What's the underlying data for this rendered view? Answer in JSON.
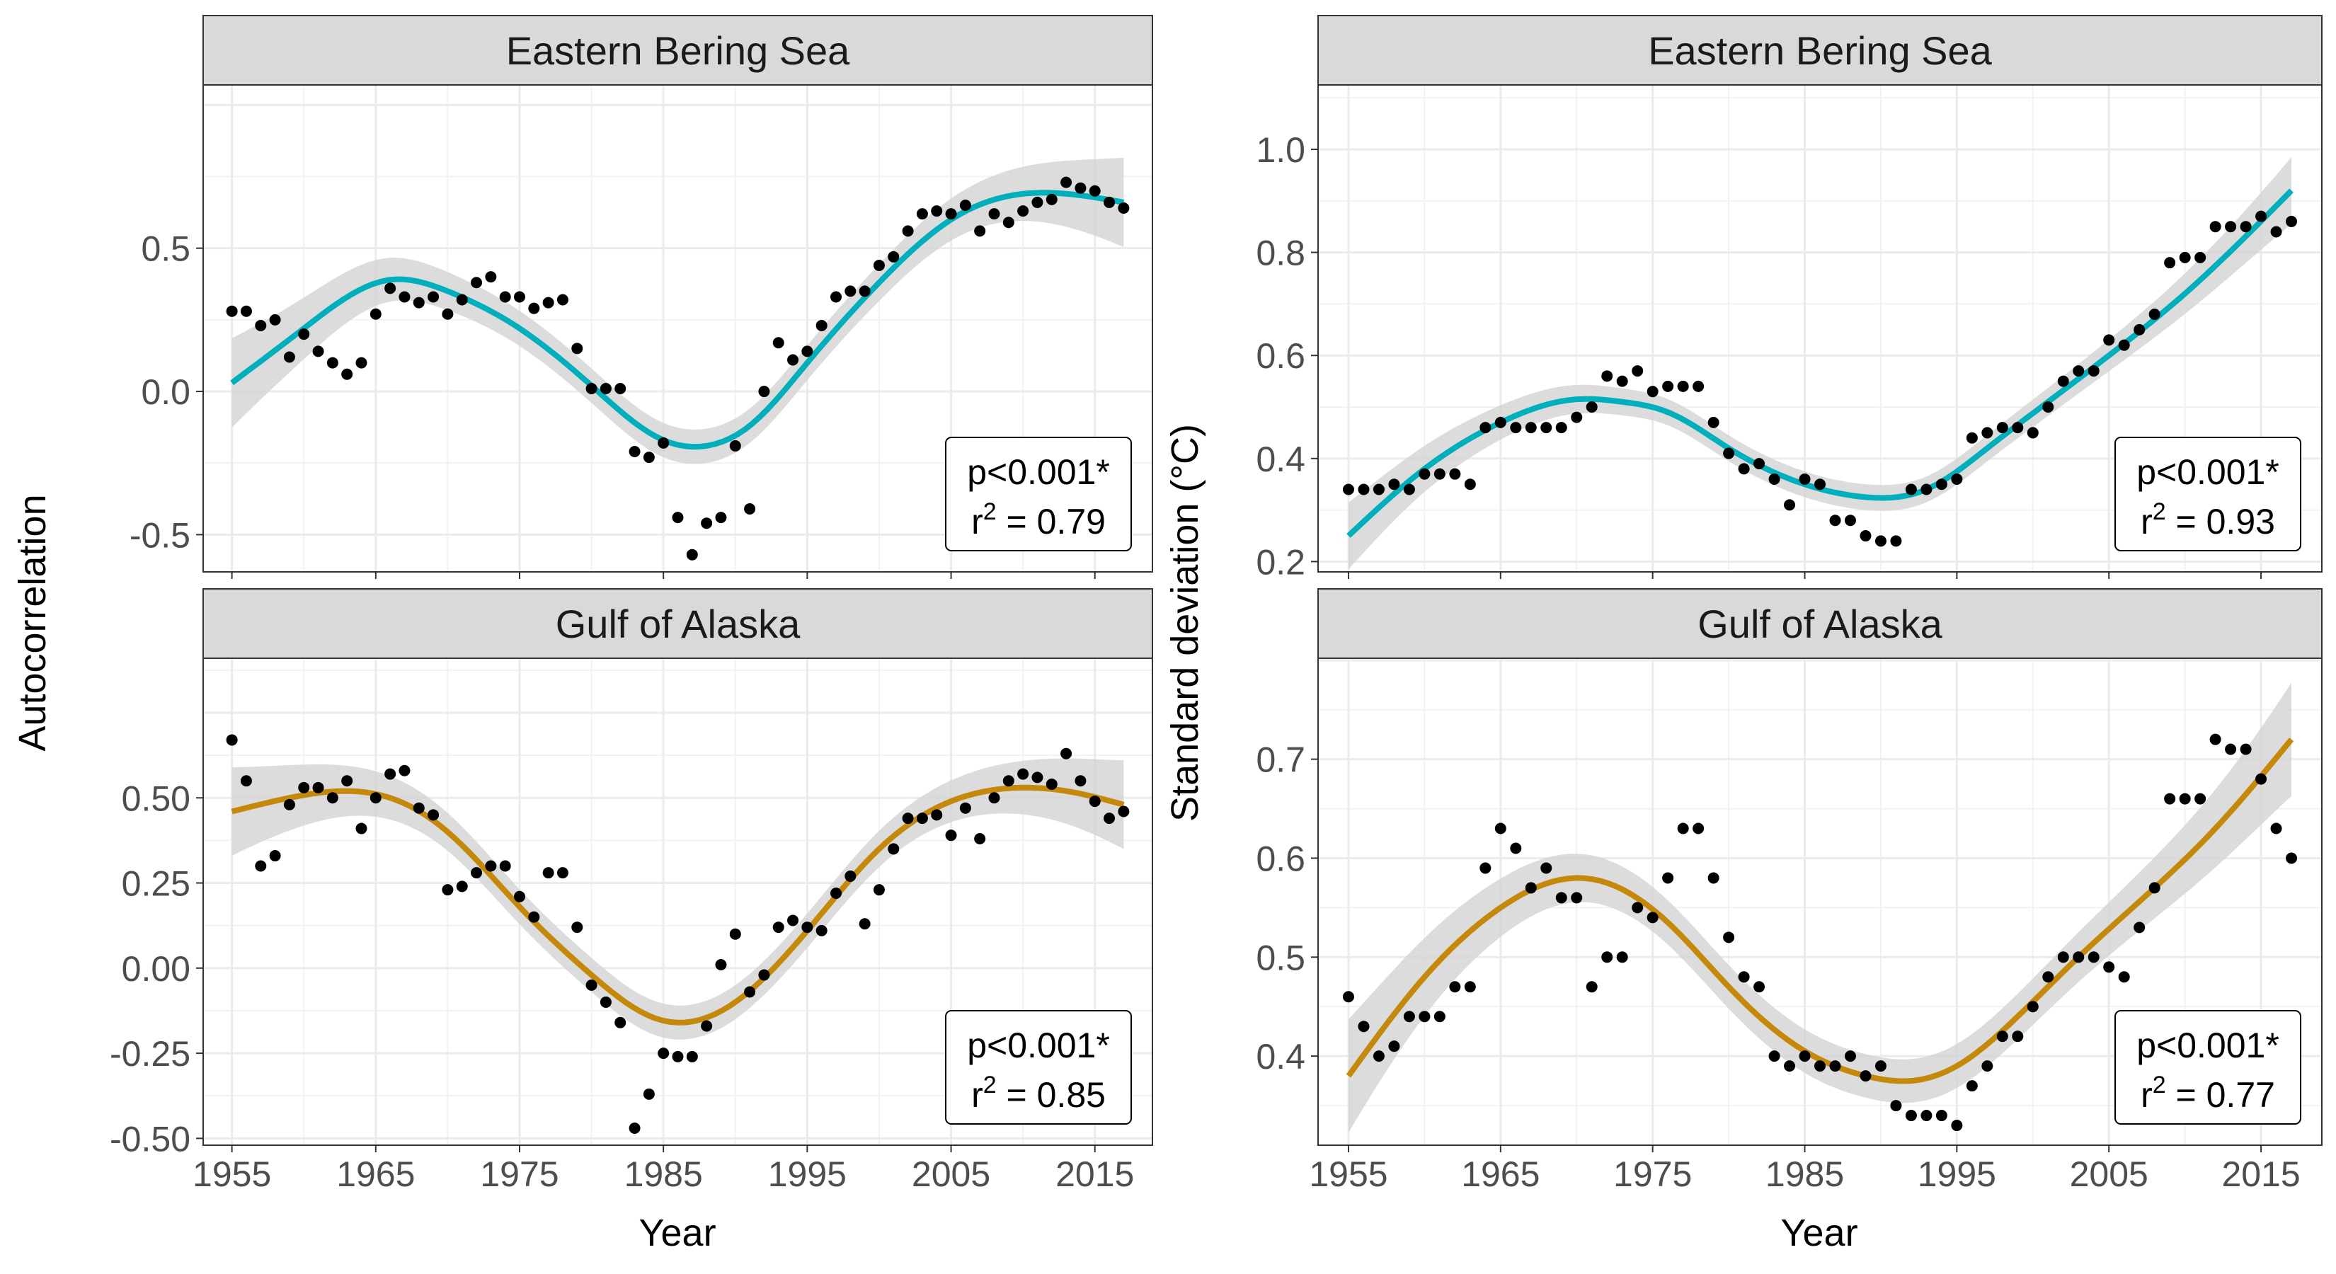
{
  "chart_data": [
    {
      "type": "scatter",
      "panel": "top-left",
      "strip_title": "Eastern Bering Sea",
      "xlabel": "Year",
      "ylabel": "Autocorrelation",
      "xlim": [
        1953,
        2019
      ],
      "ylim": [
        -0.63,
        1.07
      ],
      "x_ticks": [
        1955,
        1965,
        1975,
        1985,
        1995,
        2005,
        2015
      ],
      "x_tick_labels": [
        "1955",
        "1965",
        "1975",
        "1985",
        "1995",
        "2005",
        "2015"
      ],
      "y_ticks": [
        0.5,
        0.0,
        -0.5
      ],
      "y_tick_labels": [
        "0.5",
        "0.0",
        "-0.5"
      ],
      "grid": true,
      "annotation": {
        "p": "p<0.001*",
        "r2_prefix": "r",
        "r2_sup": "2",
        "r2_value": " = 0.79"
      },
      "fit_color": "#00AFBB",
      "band_color": "#d3d3d3",
      "band_halfwidth": 0.06,
      "fit_knots": {
        "x": [
          1955,
          1960,
          1966,
          1970,
          1975,
          1980,
          1985,
          1988,
          1991,
          1995,
          2000,
          2005,
          2010,
          2013,
          2017
        ],
        "y": [
          0.03,
          0.22,
          0.39,
          0.35,
          0.22,
          0.02,
          -0.17,
          -0.19,
          -0.12,
          0.1,
          0.38,
          0.6,
          0.69,
          0.69,
          0.66
        ]
      },
      "points": {
        "x": [
          1955,
          1956,
          1957,
          1958,
          1959,
          1960,
          1961,
          1962,
          1963,
          1964,
          1965,
          1966,
          1967,
          1968,
          1969,
          1970,
          1971,
          1972,
          1973,
          1974,
          1975,
          1976,
          1977,
          1978,
          1979,
          1980,
          1981,
          1982,
          1983,
          1984,
          1985,
          1986,
          1987,
          1988,
          1989,
          1990,
          1991,
          1992,
          1993,
          1994,
          1995,
          1996,
          1997,
          1998,
          1999,
          2000,
          2001,
          2002,
          2003,
          2004,
          2005,
          2006,
          2007,
          2008,
          2009,
          2010,
          2011,
          2012,
          2013,
          2014,
          2015,
          2016,
          2017
        ],
        "y": [
          0.28,
          0.28,
          0.23,
          0.25,
          0.12,
          0.2,
          0.14,
          0.1,
          0.06,
          0.1,
          0.27,
          0.36,
          0.33,
          0.31,
          0.33,
          0.27,
          0.32,
          0.38,
          0.4,
          0.33,
          0.33,
          0.29,
          0.31,
          0.32,
          0.15,
          0.01,
          0.01,
          0.01,
          -0.21,
          -0.23,
          -0.18,
          -0.44,
          -0.57,
          -0.46,
          -0.44,
          -0.19,
          -0.41,
          0.0,
          0.17,
          0.11,
          0.14,
          0.23,
          0.33,
          0.35,
          0.35,
          0.44,
          0.47,
          0.56,
          0.62,
          0.63,
          0.62,
          0.65,
          0.56,
          0.62,
          0.59,
          0.63,
          0.66,
          0.67,
          0.73,
          0.71,
          0.7,
          0.66,
          0.64
        ]
      }
    },
    {
      "type": "scatter",
      "panel": "bottom-left",
      "strip_title": "Gulf of Alaska",
      "xlabel": "Year",
      "ylabel": "Autocorrelation",
      "xlim": [
        1953,
        2019
      ],
      "ylim": [
        -0.52,
        0.91
      ],
      "x_ticks": [
        1955,
        1965,
        1975,
        1985,
        1995,
        2005,
        2015
      ],
      "x_tick_labels": [
        "1955",
        "1965",
        "1975",
        "1985",
        "1995",
        "2005",
        "2015"
      ],
      "y_ticks": [
        0.5,
        0.25,
        0.0,
        -0.25,
        -0.5
      ],
      "y_tick_labels": [
        "0.50",
        "0.25",
        "0.00",
        "-0.25",
        "-0.50"
      ],
      "grid": true,
      "annotation": {
        "p": "p<0.001*",
        "r2_prefix": "r",
        "r2_sup": "2",
        "r2_value": " = 0.85"
      },
      "fit_color": "#C4880B",
      "band_color": "#d3d3d3",
      "band_halfwidth": 0.05,
      "fit_knots": {
        "x": [
          1955,
          1959,
          1963,
          1966,
          1970,
          1975,
          1980,
          1984,
          1986,
          1990,
          1995,
          2000,
          2005,
          2010,
          2013,
          2017
        ],
        "y": [
          0.46,
          0.5,
          0.52,
          0.5,
          0.4,
          0.18,
          -0.02,
          -0.14,
          -0.16,
          -0.1,
          0.11,
          0.35,
          0.49,
          0.53,
          0.52,
          0.48
        ]
      },
      "points": {
        "x": [
          1955,
          1956,
          1957,
          1958,
          1959,
          1960,
          1961,
          1962,
          1963,
          1964,
          1965,
          1966,
          1967,
          1968,
          1969,
          1970,
          1971,
          1972,
          1973,
          1974,
          1975,
          1976,
          1977,
          1978,
          1979,
          1980,
          1981,
          1982,
          1983,
          1984,
          1985,
          1986,
          1987,
          1988,
          1989,
          1990,
          1991,
          1992,
          1993,
          1994,
          1995,
          1996,
          1997,
          1998,
          1999,
          2000,
          2001,
          2002,
          2003,
          2004,
          2005,
          2006,
          2007,
          2008,
          2009,
          2010,
          2011,
          2012,
          2013,
          2014,
          2015,
          2016,
          2017
        ],
        "y": [
          0.67,
          0.55,
          0.3,
          0.33,
          0.48,
          0.53,
          0.53,
          0.5,
          0.55,
          0.41,
          0.5,
          0.57,
          0.58,
          0.47,
          0.45,
          0.23,
          0.24,
          0.28,
          0.3,
          0.3,
          0.21,
          0.15,
          0.28,
          0.28,
          0.12,
          -0.05,
          -0.1,
          -0.16,
          -0.47,
          -0.37,
          -0.25,
          -0.26,
          -0.26,
          -0.17,
          0.01,
          0.1,
          -0.07,
          -0.02,
          0.12,
          0.14,
          0.12,
          0.11,
          0.22,
          0.27,
          0.13,
          0.23,
          0.35,
          0.44,
          0.44,
          0.45,
          0.39,
          0.47,
          0.38,
          0.5,
          0.55,
          0.57,
          0.56,
          0.54,
          0.63,
          0.55,
          0.49,
          0.44,
          0.46
        ]
      }
    },
    {
      "type": "scatter",
      "panel": "top-right",
      "strip_title": "Eastern Bering Sea",
      "xlabel": "Year",
      "ylabel": "Standard deviation (°C)",
      "xlim": [
        1953,
        2019
      ],
      "ylim": [
        0.18,
        1.125
      ],
      "x_ticks": [
        1955,
        1965,
        1975,
        1985,
        1995,
        2005,
        2015
      ],
      "x_tick_labels": [
        "1955",
        "1965",
        "1975",
        "1985",
        "1995",
        "2005",
        "2015"
      ],
      "y_ticks": [
        1.0,
        0.8,
        0.6,
        0.4,
        0.2
      ],
      "y_tick_labels": [
        "1.0",
        "0.8",
        "0.6",
        "0.4",
        "0.2"
      ],
      "grid": true,
      "annotation": {
        "p": "p<0.001*",
        "r2_prefix": "r",
        "r2_sup": "2",
        "r2_value": " = 0.93"
      },
      "fit_color": "#00AFBB",
      "band_color": "#d3d3d3",
      "band_halfwidth": 0.025,
      "fit_knots": {
        "x": [
          1955,
          1960,
          1965,
          1970,
          1973,
          1976,
          1980,
          1985,
          1989,
          1993,
          1997,
          2001,
          2005,
          2010,
          2017
        ],
        "y": [
          0.25,
          0.38,
          0.47,
          0.515,
          0.51,
          0.49,
          0.42,
          0.35,
          0.325,
          0.34,
          0.42,
          0.51,
          0.6,
          0.72,
          0.92
        ]
      },
      "points": {
        "x": [
          1955,
          1956,
          1957,
          1958,
          1959,
          1960,
          1961,
          1962,
          1963,
          1964,
          1965,
          1966,
          1967,
          1968,
          1969,
          1970,
          1971,
          1972,
          1973,
          1974,
          1975,
          1976,
          1977,
          1978,
          1979,
          1980,
          1981,
          1982,
          1983,
          1984,
          1985,
          1986,
          1987,
          1988,
          1989,
          1990,
          1991,
          1992,
          1993,
          1994,
          1995,
          1996,
          1997,
          1998,
          1999,
          2000,
          2001,
          2002,
          2003,
          2004,
          2005,
          2006,
          2007,
          2008,
          2009,
          2010,
          2011,
          2012,
          2013,
          2014,
          2015,
          2016,
          2017
        ],
        "y": [
          0.34,
          0.34,
          0.34,
          0.35,
          0.34,
          0.37,
          0.37,
          0.37,
          0.35,
          0.46,
          0.47,
          0.46,
          0.46,
          0.46,
          0.46,
          0.48,
          0.5,
          0.56,
          0.55,
          0.57,
          0.53,
          0.54,
          0.54,
          0.54,
          0.47,
          0.41,
          0.38,
          0.39,
          0.36,
          0.31,
          0.36,
          0.35,
          0.28,
          0.28,
          0.25,
          0.24,
          0.24,
          0.34,
          0.34,
          0.35,
          0.36,
          0.44,
          0.45,
          0.46,
          0.46,
          0.45,
          0.5,
          0.55,
          0.57,
          0.57,
          0.63,
          0.62,
          0.65,
          0.68,
          0.78,
          0.79,
          0.79,
          0.85,
          0.85,
          0.85,
          0.87,
          0.84,
          0.86
        ]
      }
    },
    {
      "type": "scatter",
      "panel": "bottom-right",
      "strip_title": "Gulf of Alaska",
      "xlabel": "Year",
      "ylabel": "Standard deviation (°C)",
      "xlim": [
        1953,
        2019
      ],
      "ylim": [
        0.31,
        0.802
      ],
      "x_ticks": [
        1955,
        1965,
        1975,
        1985,
        1995,
        2005,
        2015
      ],
      "x_tick_labels": [
        "1955",
        "1965",
        "1975",
        "1985",
        "1995",
        "2005",
        "2015"
      ],
      "y_ticks": [
        0.7,
        0.6,
        0.5,
        0.4
      ],
      "y_tick_labels": [
        "0.7",
        "0.6",
        "0.5",
        "0.4"
      ],
      "grid": true,
      "annotation": {
        "p": "p<0.001*",
        "r2_prefix": "r",
        "r2_sup": "2",
        "r2_value": " = 0.77"
      },
      "fit_color": "#C4880B",
      "band_color": "#d3d3d3",
      "band_halfwidth": 0.022,
      "fit_knots": {
        "x": [
          1955,
          1960,
          1965,
          1970,
          1972,
          1976,
          1980,
          1985,
          1989,
          1992,
          1995,
          1999,
          2003,
          2008,
          2012,
          2017
        ],
        "y": [
          0.38,
          0.48,
          0.55,
          0.58,
          0.575,
          0.535,
          0.47,
          0.405,
          0.38,
          0.375,
          0.39,
          0.44,
          0.5,
          0.57,
          0.63,
          0.72
        ]
      },
      "points": {
        "x": [
          1955,
          1956,
          1957,
          1958,
          1959,
          1960,
          1961,
          1962,
          1963,
          1964,
          1965,
          1966,
          1967,
          1968,
          1969,
          1970,
          1971,
          1972,
          1973,
          1974,
          1975,
          1976,
          1977,
          1978,
          1979,
          1980,
          1981,
          1982,
          1983,
          1984,
          1985,
          1986,
          1987,
          1988,
          1989,
          1990,
          1991,
          1992,
          1993,
          1994,
          1995,
          1996,
          1997,
          1998,
          1999,
          2000,
          2001,
          2002,
          2003,
          2004,
          2005,
          2006,
          2007,
          2008,
          2009,
          2010,
          2011,
          2012,
          2013,
          2014,
          2015,
          2016,
          2017
        ],
        "y": [
          0.46,
          0.43,
          0.4,
          0.41,
          0.44,
          0.44,
          0.44,
          0.47,
          0.47,
          0.59,
          0.63,
          0.61,
          0.57,
          0.59,
          0.56,
          0.56,
          0.47,
          0.5,
          0.5,
          0.55,
          0.54,
          0.58,
          0.63,
          0.63,
          0.58,
          0.52,
          0.48,
          0.47,
          0.4,
          0.39,
          0.4,
          0.39,
          0.39,
          0.4,
          0.38,
          0.39,
          0.35,
          0.34,
          0.34,
          0.34,
          0.33,
          0.37,
          0.39,
          0.42,
          0.42,
          0.45,
          0.48,
          0.5,
          0.5,
          0.5,
          0.49,
          0.48,
          0.53,
          0.57,
          0.66,
          0.66,
          0.66,
          0.72,
          0.71,
          0.71,
          0.68,
          0.63,
          0.6
        ]
      }
    }
  ]
}
